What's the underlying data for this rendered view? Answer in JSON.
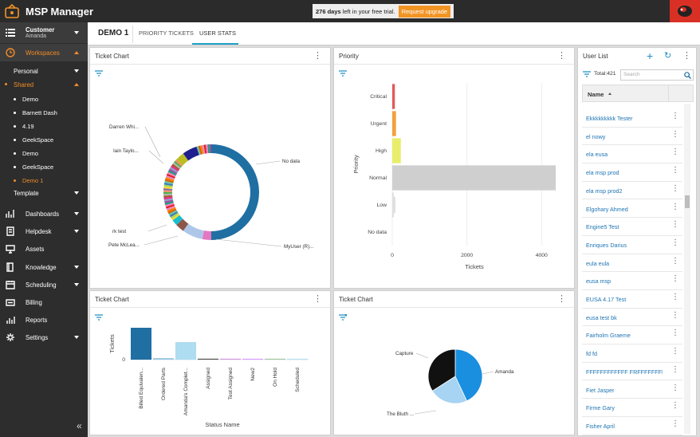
{
  "app": {
    "title": "MSP Manager",
    "trial_days": "276 days",
    "trial_rest": "left in your free trial.",
    "upgrade": "Request upgrade"
  },
  "sidebar": {
    "customer": "Customer",
    "customer_sub": "Amanda",
    "workspaces": "Workspaces",
    "personal": "Personal",
    "shared": "Shared",
    "workspaces_list": [
      "Demo",
      "Barnett Dash",
      "4.19",
      "GeekSpace",
      "Demo",
      "GeekSpace",
      "Demo 1"
    ],
    "template": "Template",
    "nav": [
      "Dashboards",
      "Helpdesk",
      "Assets",
      "Knowledge",
      "Scheduling",
      "Billing",
      "Reports",
      "Settings"
    ]
  },
  "tabs": {
    "active": "DEMO 1",
    "items": [
      "PRIORITY TICKETS",
      "USER STATS"
    ]
  },
  "panels": {
    "ticket_chart_1": {
      "title": "Ticket Chart",
      "labels": [
        "Darren Whi...",
        "Iain Taylo...",
        "No data",
        "rk test",
        "Pete McLea...",
        "MyUser (R)..."
      ]
    },
    "priority": {
      "title": "Priority"
    },
    "ticket_chart_2": {
      "title": "Ticket Chart"
    },
    "ticket_chart_3": {
      "title": "Ticket Chart",
      "labels": [
        "Capture",
        "Amanda",
        "The Bluth ..."
      ]
    }
  },
  "user_list": {
    "title": "User List",
    "total": "Total:421",
    "search_placeholder": "Search",
    "col_name": "Name",
    "rows": [
      "Ekkkkkkkkk Tester",
      "el nowy",
      "ela eusa",
      "ela msp prod",
      "ela msp prod2",
      "Elgohary Ahmed",
      "Engine5 Test",
      "Enriques Darius",
      "eula eula",
      "eusa msp",
      "EUSA 4.17 Test",
      "eusa test bk",
      "Fairholm Graeme",
      "fd fd",
      "FFFFFFFFFFFF FRFFFFFFFFFF...",
      "Fiet Jasper",
      "Firme Gary",
      "Fisher April"
    ]
  },
  "chart_data": [
    {
      "type": "pie",
      "title": "Ticket Chart",
      "donut": true,
      "slices": [
        {
          "label": "No data",
          "value": 50,
          "color": "#1f6fa3"
        },
        {
          "label": "MyUser (R)...",
          "value": 3,
          "color": "#e377c2"
        },
        {
          "label": "",
          "value": 7,
          "color": "#aec7e8"
        },
        {
          "label": "Pete McLea...",
          "value": 3,
          "color": "#8c564b"
        },
        {
          "label": "rk test",
          "value": 2,
          "color": "#17becf"
        },
        {
          "label": "",
          "value": 22,
          "color": "#mixed"
        },
        {
          "label": "Iain Taylo...",
          "value": 3,
          "color": "#bcbd22"
        },
        {
          "label": "Darren Whi...",
          "value": 5,
          "color": "#1f1f8f"
        },
        {
          "label": "",
          "value": 5,
          "color": "#mixed"
        }
      ]
    },
    {
      "type": "bar",
      "orientation": "horizontal",
      "title": "Priority",
      "xlabel": "Tickets",
      "ylabel": "Priority",
      "categories": [
        "Critical",
        "Urgent",
        "High",
        "Normal",
        "Low",
        "No data"
      ],
      "values": [
        70,
        100,
        230,
        4380,
        40,
        0
      ],
      "colors": [
        "#e05a5a",
        "#f5a03c",
        "#e8ee6a",
        "#cfcfcf",
        "#dddddd",
        "#dddddd"
      ],
      "xlim": [
        0,
        4400
      ],
      "xticks": [
        "0",
        "2000",
        "4000"
      ]
    },
    {
      "type": "bar",
      "title": "Ticket Chart",
      "xlabel": "Status Name",
      "ylabel": "Tickets",
      "categories": [
        "Billed Equivalen...",
        "Ordered Parts",
        "Amanda's Complet...",
        "Assigned",
        "Test Assigned",
        "New2",
        "On Hold",
        "Scheduled"
      ],
      "values": [
        40,
        2,
        22,
        1,
        1,
        1,
        1,
        1
      ],
      "colors": [
        "#1f6fa3",
        "#9ecae1",
        "#aedcf0",
        "#555555",
        "#d39be0",
        "#d9a0ff",
        "#a3c8a3",
        "#b9e0f0"
      ],
      "yticks": [
        "0"
      ]
    },
    {
      "type": "pie",
      "title": "Ticket Chart",
      "slices": [
        {
          "label": "Amanda",
          "value": 43,
          "color": "#1a8fe0"
        },
        {
          "label": "The Bluth ...",
          "value": 23,
          "color": "#a6d4f2"
        },
        {
          "label": "Capture",
          "value": 34,
          "color": "#111111"
        }
      ]
    }
  ]
}
